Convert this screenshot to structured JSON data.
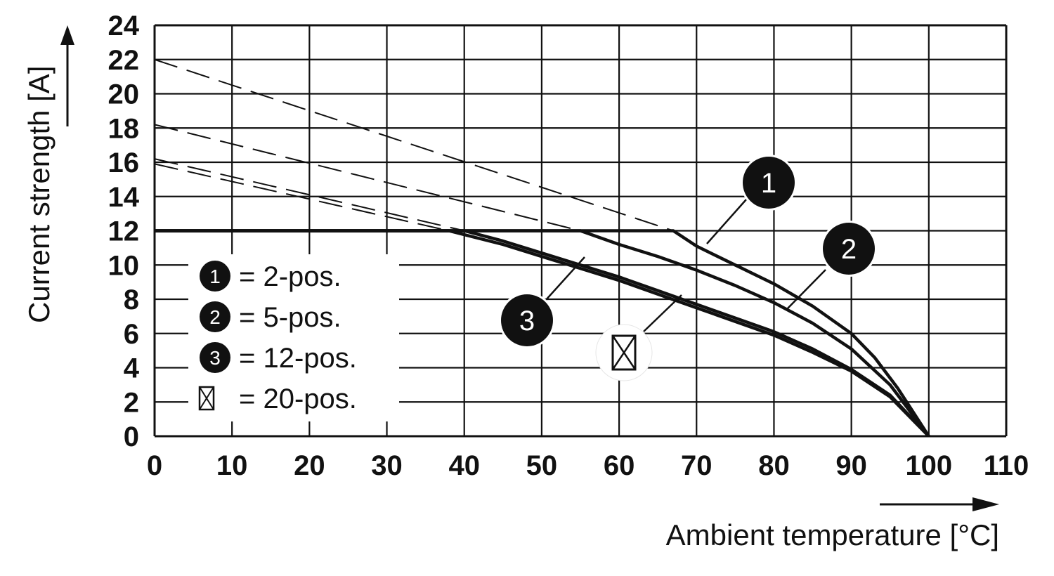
{
  "chart_data": {
    "type": "line",
    "xlabel": "Ambient temperature [°C]",
    "ylabel": "Current strength [A]",
    "xlim": [
      0,
      110
    ],
    "ylim": [
      0,
      24
    ],
    "x_ticks": [
      "0",
      "10",
      "20",
      "30",
      "40",
      "50",
      "60",
      "70",
      "80",
      "90",
      "100",
      "110"
    ],
    "y_ticks": [
      "0",
      "2",
      "4",
      "6",
      "8",
      "10",
      "12",
      "14",
      "16",
      "18",
      "20",
      "22",
      "24"
    ],
    "grid": true,
    "legend_position": "lower-left",
    "colors": {
      "line": "#111111",
      "marker_fill": "#111111",
      "marker_text": "#ffffff"
    },
    "series": [
      {
        "name": "2-pos.",
        "marker": "1",
        "derating": [
          [
            0,
            12
          ],
          [
            67,
            12
          ],
          [
            70,
            11.1
          ],
          [
            75,
            10.0
          ],
          [
            80,
            8.9
          ],
          [
            85,
            7.6
          ],
          [
            90,
            6.0
          ],
          [
            93,
            4.6
          ],
          [
            96,
            2.8
          ],
          [
            100,
            0
          ]
        ],
        "extrapolated": [
          [
            0,
            22
          ],
          [
            67,
            12
          ]
        ]
      },
      {
        "name": "5-pos.",
        "marker": "2",
        "derating": [
          [
            0,
            12
          ],
          [
            55,
            12
          ],
          [
            60,
            11.2
          ],
          [
            65,
            10.5
          ],
          [
            70,
            9.7
          ],
          [
            75,
            8.8
          ],
          [
            80,
            7.8
          ],
          [
            85,
            6.6
          ],
          [
            90,
            5.1
          ],
          [
            95,
            3.0
          ],
          [
            100,
            0
          ]
        ],
        "extrapolated": [
          [
            0,
            18.2
          ],
          [
            55,
            12
          ]
        ]
      },
      {
        "name": "12-pos.",
        "marker": "3",
        "derating": [
          [
            0,
            12
          ],
          [
            40,
            12
          ],
          [
            45,
            11.4
          ],
          [
            50,
            10.7
          ],
          [
            55,
            10.0
          ],
          [
            60,
            9.3
          ],
          [
            65,
            8.5
          ],
          [
            70,
            7.7
          ],
          [
            75,
            6.9
          ],
          [
            80,
            6.1
          ],
          [
            85,
            5.1
          ],
          [
            90,
            3.9
          ],
          [
            95,
            2.4
          ],
          [
            100,
            0
          ]
        ],
        "extrapolated": [
          [
            0,
            16.2
          ],
          [
            40,
            12
          ]
        ]
      },
      {
        "name": "20-pos.",
        "marker": "box",
        "derating": [
          [
            0,
            12
          ],
          [
            38,
            12
          ],
          [
            45,
            11.2
          ],
          [
            50,
            10.5
          ],
          [
            55,
            9.8
          ],
          [
            60,
            9.1
          ],
          [
            65,
            8.3
          ],
          [
            70,
            7.5
          ],
          [
            75,
            6.7
          ],
          [
            80,
            5.9
          ],
          [
            85,
            4.9
          ],
          [
            90,
            3.8
          ],
          [
            95,
            2.3
          ],
          [
            100,
            0
          ]
        ],
        "extrapolated": [
          [
            0,
            15.9
          ],
          [
            38,
            12
          ]
        ]
      }
    ],
    "legend": [
      {
        "marker": "1",
        "text": "= 2-pos."
      },
      {
        "marker": "2",
        "text": "= 5-pos."
      },
      {
        "marker": "3",
        "text": "= 12-pos."
      },
      {
        "marker": "box",
        "text": "= 20-pos."
      }
    ]
  }
}
